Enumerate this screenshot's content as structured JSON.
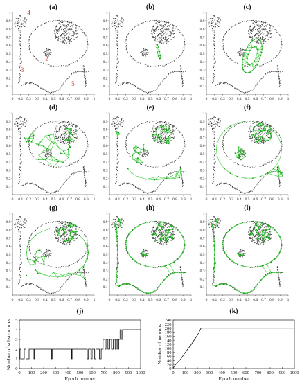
{
  "chart_data": [
    {
      "id": "a",
      "type": "scatter",
      "title": "(a)",
      "xlim": [
        0,
        1
      ],
      "ylim": [
        0,
        1
      ],
      "x_ticks": [
        "0",
        "0.1",
        "0.2",
        "0.3",
        "0.4",
        "0.5",
        "0.6",
        "0.7",
        "0.8",
        "0.9",
        "1"
      ],
      "y_ticks": [
        "0",
        "0.1",
        "0.2",
        "0.3",
        "0.4",
        "0.5",
        "0.6",
        "0.7",
        "0.8",
        "0.9",
        "1"
      ],
      "annotations": [
        {
          "text": "4",
          "x": 0.2,
          "y": 0.97
        },
        {
          "text": "1",
          "x": 0.53,
          "y": 0.67
        },
        {
          "text": "2",
          "x": 0.42,
          "y": 0.41
        },
        {
          "text": "3",
          "x": 0.12,
          "y": 0.27
        },
        {
          "text": "5",
          "x": 0.74,
          "y": 0.1
        }
      ],
      "network": "none"
    },
    {
      "id": "b",
      "type": "scatter",
      "title": "(b)",
      "xlim": [
        0,
        1
      ],
      "ylim": [
        0,
        1
      ],
      "x_ticks": [
        "0",
        "0.1",
        "0.2",
        "0.3",
        "0.4",
        "0.5",
        "0.6",
        "0.7",
        "0.8",
        "0.9",
        "1"
      ],
      "y_ticks": [
        "0",
        "0.1",
        "0.2",
        "0.3",
        "0.4",
        "0.5",
        "0.6",
        "0.7",
        "0.8",
        "0.9",
        "1"
      ],
      "network": "small"
    },
    {
      "id": "c",
      "type": "scatter",
      "title": "(c)",
      "xlim": [
        0,
        1
      ],
      "ylim": [
        0,
        1
      ],
      "x_ticks": [
        "0",
        "0.1",
        "0.2",
        "0.3",
        "0.4",
        "0.5",
        "0.6",
        "0.7",
        "0.8",
        "0.9",
        "1"
      ],
      "y_ticks": [
        "0",
        "0.1",
        "0.2",
        "0.3",
        "0.4",
        "0.5",
        "0.6",
        "0.7",
        "0.8",
        "0.9",
        "1"
      ],
      "network": "ellipse"
    },
    {
      "id": "d",
      "type": "scatter",
      "title": "(d)",
      "xlim": [
        0,
        1
      ],
      "ylim": [
        0,
        1
      ],
      "x_ticks": [
        "0",
        "0.1",
        "0.2",
        "0.3",
        "0.4",
        "0.5",
        "0.6",
        "0.7",
        "0.8",
        "0.9",
        "1"
      ],
      "y_ticks": [
        "0",
        "0.1",
        "0.2",
        "0.3",
        "0.4",
        "0.5",
        "0.6",
        "0.7",
        "0.8",
        "0.9",
        "1"
      ],
      "network": "mesh"
    },
    {
      "id": "e",
      "type": "scatter",
      "title": "(e)",
      "xlim": [
        0,
        1
      ],
      "ylim": [
        0,
        1
      ],
      "x_ticks": [
        "0",
        "0.1",
        "0.2",
        "0.3",
        "0.4",
        "0.5",
        "0.6",
        "0.7",
        "0.8",
        "0.9",
        "1"
      ],
      "y_ticks": [
        "0",
        "0.1",
        "0.2",
        "0.3",
        "0.4",
        "0.5",
        "0.6",
        "0.7",
        "0.8",
        "0.9",
        "1"
      ],
      "network": "spread"
    },
    {
      "id": "f",
      "type": "scatter",
      "title": "(f)",
      "xlim": [
        0,
        1
      ],
      "ylim": [
        0,
        1
      ],
      "x_ticks": [
        "0",
        "0.1",
        "0.2",
        "0.3",
        "0.4",
        "0.5",
        "0.6",
        "0.7",
        "0.8",
        "0.9",
        "1"
      ],
      "y_ticks": [
        "0",
        "0.1",
        "0.2",
        "0.3",
        "0.4",
        "0.5",
        "0.6",
        "0.7",
        "0.8",
        "0.9",
        "1"
      ],
      "network": "loops"
    },
    {
      "id": "g",
      "type": "scatter",
      "title": "(g)",
      "xlim": [
        0,
        1
      ],
      "ylim": [
        0,
        1
      ],
      "x_ticks": [
        "0",
        "0.1",
        "0.2",
        "0.3",
        "0.4",
        "0.5",
        "0.6",
        "0.7",
        "0.8",
        "0.9",
        "1"
      ],
      "y_ticks": [
        "0",
        "0.1",
        "0.2",
        "0.3",
        "0.4",
        "0.5",
        "0.6",
        "0.7",
        "0.8",
        "0.9",
        "1"
      ],
      "network": "loops2"
    },
    {
      "id": "h",
      "type": "scatter",
      "title": "(h)",
      "xlim": [
        0,
        1
      ],
      "ylim": [
        0,
        1
      ],
      "x_ticks": [
        "0",
        "0.1",
        "0.2",
        "0.3",
        "0.4",
        "0.5",
        "0.6",
        "0.7",
        "0.8",
        "0.9",
        "1"
      ],
      "y_ticks": [
        "0",
        "0.1",
        "0.2",
        "0.3",
        "0.4",
        "0.5",
        "0.6",
        "0.7",
        "0.8",
        "0.9",
        "1"
      ],
      "network": "full"
    },
    {
      "id": "i",
      "type": "scatter",
      "title": "(i)",
      "xlim": [
        0,
        1
      ],
      "ylim": [
        0,
        1
      ],
      "x_ticks": [
        "0",
        "0.1",
        "0.2",
        "0.3",
        "0.4",
        "0.5",
        "0.6",
        "0.7",
        "0.8",
        "0.9",
        "1"
      ],
      "y_ticks": [
        "0",
        "0.1",
        "0.2",
        "0.3",
        "0.4",
        "0.5",
        "0.6",
        "0.7",
        "0.8",
        "0.9",
        "1"
      ],
      "network": "full"
    },
    {
      "id": "j",
      "type": "line",
      "title": "(j)",
      "xlabel": "Epoch number",
      "ylabel": "Number of substructures",
      "xlim": [
        0,
        1000
      ],
      "ylim": [
        0,
        5
      ],
      "x_ticks": [
        "0",
        "100",
        "200",
        "300",
        "400",
        "500",
        "600",
        "700",
        "800",
        "900",
        "1000"
      ],
      "y_ticks": [
        "0",
        "1",
        "2",
        "3",
        "4",
        "5"
      ],
      "x": [
        0,
        5,
        5,
        15,
        15,
        40,
        40,
        55,
        55,
        80,
        80,
        120,
        120,
        125,
        125,
        265,
        265,
        270,
        270,
        430,
        430,
        435,
        435,
        560,
        560,
        570,
        570,
        590,
        590,
        600,
        600,
        620,
        620,
        630,
        630,
        660,
        660,
        675,
        675,
        690,
        690,
        705,
        705,
        715,
        715,
        730,
        730,
        745,
        745,
        760,
        760,
        775,
        775,
        790,
        790,
        800,
        800,
        810,
        810,
        820,
        820,
        830,
        830,
        840,
        840,
        850,
        850,
        860,
        860,
        1000
      ],
      "y": [
        1,
        1,
        2,
        2,
        1,
        1,
        2,
        2,
        1,
        1,
        2,
        2,
        1,
        1,
        2,
        2,
        1,
        1,
        2,
        2,
        1,
        1,
        2,
        2,
        1,
        1,
        2,
        2,
        1,
        1,
        2,
        2,
        1,
        1,
        2,
        2,
        1,
        1,
        2,
        2,
        3,
        3,
        2,
        2,
        3,
        3,
        2,
        2,
        3,
        3,
        2,
        2,
        3,
        3,
        2,
        2,
        3,
        3,
        2,
        2,
        3,
        3,
        4,
        4,
        3,
        3,
        4,
        4,
        4,
        4
      ]
    },
    {
      "id": "k",
      "type": "line",
      "title": "(k)",
      "xlabel": "Epoch number",
      "ylabel": "Number of neurons",
      "xlim": [
        0,
        1000
      ],
      "ylim": [
        0,
        240
      ],
      "x_ticks": [
        "0",
        "100",
        "200",
        "300",
        "400",
        "500",
        "600",
        "700",
        "800",
        "900",
        "1000"
      ],
      "y_ticks": [
        "0",
        "20",
        "40",
        "60",
        "80",
        "100",
        "120",
        "140",
        "160",
        "180",
        "200",
        "220",
        "240"
      ],
      "x": [
        0,
        20,
        60,
        100,
        150,
        200,
        230,
        1000
      ],
      "y": [
        2,
        20,
        45,
        80,
        120,
        165,
        200,
        200
      ]
    }
  ]
}
